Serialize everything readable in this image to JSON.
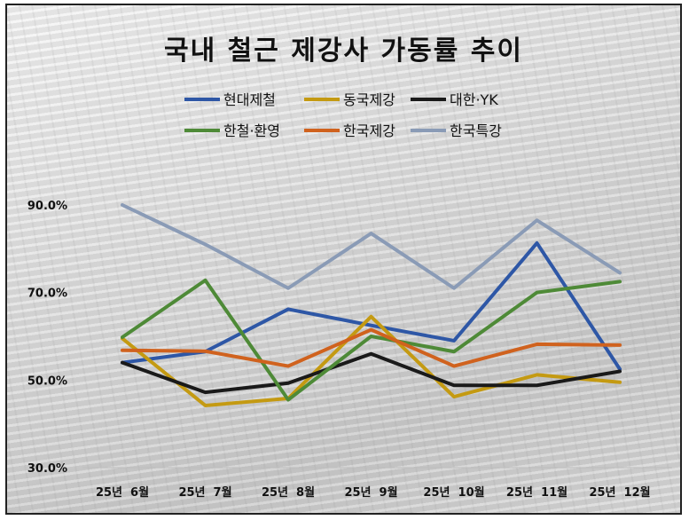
{
  "chart_data": {
    "type": "line",
    "title": "국내 철근 제강사 가동률 추이",
    "categories": [
      "25년  6월",
      "25년  7월",
      "25년  8월",
      "25년  9월",
      "25년  10월",
      "25년  11월",
      "25년  12월"
    ],
    "y_tick_labels": [
      "90.0%",
      "70.0%",
      "50.0%",
      "30.0%"
    ],
    "ylim": [
      30,
      90
    ],
    "grid": false,
    "legend_position": "top",
    "series": [
      {
        "name": "현대제철",
        "color": "#2E57A6",
        "values": [
          54.0,
          56.5,
          66.2,
          62.5,
          59.0,
          81.3,
          52.5
        ]
      },
      {
        "name": "동국제강",
        "color": "#C49A12",
        "values": [
          59.5,
          44.2,
          45.8,
          64.5,
          46.2,
          51.2,
          49.5
        ]
      },
      {
        "name": "대한·YK",
        "color": "#1A1A1A",
        "values": [
          54.0,
          47.2,
          49.3,
          56.0,
          48.8,
          48.8,
          52.0
        ]
      },
      {
        "name": "한철·환영",
        "color": "#4E8A37",
        "values": [
          59.8,
          72.8,
          45.5,
          60.0,
          56.5,
          70.0,
          72.5
        ]
      },
      {
        "name": "한국제강",
        "color": "#D0621E",
        "values": [
          56.8,
          56.6,
          53.2,
          61.5,
          53.2,
          58.2,
          58.0
        ]
      },
      {
        "name": "한국특강",
        "color": "#8A9BB6",
        "values": [
          90.0,
          81.0,
          71.0,
          83.5,
          71.0,
          86.5,
          74.5
        ]
      }
    ]
  }
}
